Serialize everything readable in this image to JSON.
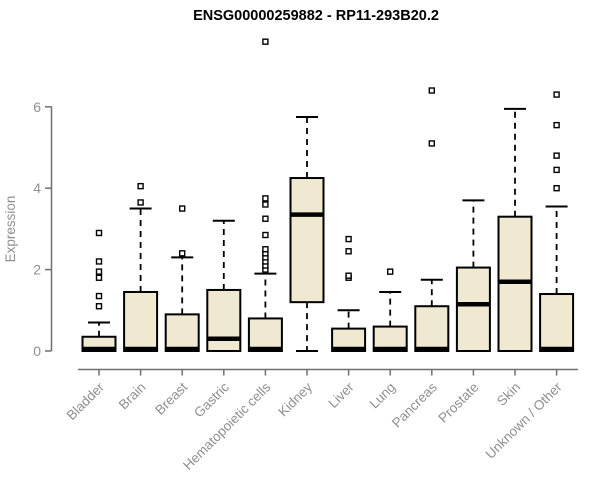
{
  "page": {
    "background": "#ffffff"
  },
  "chart_data": {
    "type": "boxplot",
    "title": "ENSG00000259882 - RP11-293B20.2",
    "ylabel": "Expression",
    "xlabel": "",
    "ylim": [
      0,
      7.8
    ],
    "yticks": [
      0,
      2,
      4,
      6
    ],
    "grid": false,
    "legend": null,
    "categories": [
      "Bladder",
      "Brain",
      "Breast",
      "Gastric",
      "Hematopoietic cells",
      "Kidney",
      "Liver",
      "Lung",
      "Pancreas",
      "Prostate",
      "Skin",
      "Unknown / Other"
    ],
    "boxes": [
      {
        "category": "Bladder",
        "low": 0,
        "q1": 0,
        "median": 0.05,
        "q3": 0.35,
        "high": 0.7,
        "outliers": [
          1.1,
          1.35,
          1.8,
          1.95,
          2.2,
          2.9
        ]
      },
      {
        "category": "Brain",
        "low": 0,
        "q1": 0,
        "median": 0.05,
        "q3": 1.45,
        "high": 3.5,
        "outliers": [
          3.65,
          4.05
        ]
      },
      {
        "category": "Breast",
        "low": 0,
        "q1": 0,
        "median": 0.05,
        "q3": 0.9,
        "high": 2.3,
        "outliers": [
          2.4,
          3.5
        ]
      },
      {
        "category": "Gastric",
        "low": 0,
        "q1": 0,
        "median": 0.3,
        "q3": 1.5,
        "high": 3.2,
        "outliers": []
      },
      {
        "category": "Hematopoietic cells",
        "low": 0,
        "q1": 0,
        "median": 0.05,
        "q3": 0.8,
        "high": 1.9,
        "outliers": [
          2.0,
          2.1,
          2.2,
          2.3,
          2.4,
          2.5,
          2.85,
          3.25,
          3.6,
          3.75,
          7.6
        ]
      },
      {
        "category": "Kidney",
        "low": 0,
        "q1": 1.2,
        "median": 3.35,
        "q3": 4.25,
        "high": 5.75,
        "outliers": []
      },
      {
        "category": "Liver",
        "low": 0,
        "q1": 0,
        "median": 0.05,
        "q3": 0.55,
        "high": 1.0,
        "outliers": [
          1.8,
          1.85,
          2.45,
          2.75
        ]
      },
      {
        "category": "Lung",
        "low": 0,
        "q1": 0,
        "median": 0.05,
        "q3": 0.6,
        "high": 1.45,
        "outliers": [
          1.95
        ]
      },
      {
        "category": "Pancreas",
        "low": 0,
        "q1": 0,
        "median": 0.05,
        "q3": 1.1,
        "high": 1.75,
        "outliers": [
          5.1,
          6.4
        ]
      },
      {
        "category": "Prostate",
        "low": 0,
        "q1": 0,
        "median": 1.15,
        "q3": 2.05,
        "high": 3.7,
        "outliers": []
      },
      {
        "category": "Skin",
        "low": 0,
        "q1": 0,
        "median": 1.7,
        "q3": 3.3,
        "high": 5.95,
        "outliers": []
      },
      {
        "category": "Unknown / Other",
        "low": 0,
        "q1": 0,
        "median": 0.05,
        "q3": 1.4,
        "high": 3.55,
        "outliers": [
          4.0,
          4.45,
          4.8,
          5.55,
          6.3
        ]
      }
    ],
    "colors": {
      "box_fill": "#F0E9D1",
      "box_border": "#000000",
      "median": "#000000",
      "whisker": "#000000",
      "outlier": "#000000",
      "axis": "#6F6F6F",
      "tick_label": "#8F8F8F",
      "title": "#000000"
    }
  }
}
